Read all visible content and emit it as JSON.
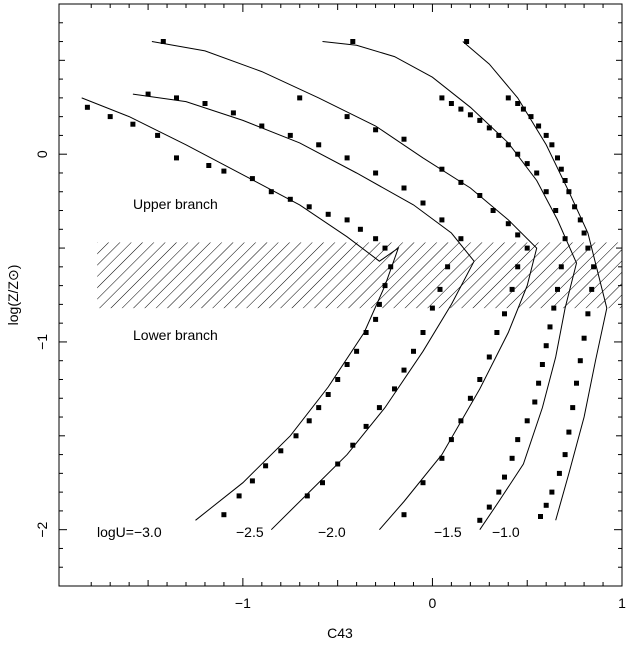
{
  "chart_data": {
    "type": "scatter",
    "xlabel": "C43",
    "ylabel": "log(Z/Z⊙)",
    "xlim": [
      -1.97,
      1.0
    ],
    "ylim": [
      -2.3,
      0.8
    ],
    "x_ticks": [
      -1,
      0,
      1
    ],
    "x_tick_labels": [
      "−1",
      "0",
      "1"
    ],
    "y_ticks": [
      -2,
      -1,
      0
    ],
    "y_tick_labels": [
      "−2",
      "−1",
      "0"
    ],
    "grid": false,
    "legend": "none",
    "annotations": {
      "upper_branch": "Upper branch",
      "lower_branch": "Lower branch",
      "u_label_1": "logU=−3.0",
      "u_label_2": "−2.5",
      "u_label_3": "−2.0",
      "u_label_4": "−1.5",
      "u_label_5": "−1.0"
    },
    "shaded_band": {
      "y_range": [
        -0.82,
        -0.47
      ],
      "x_range": [
        -1.8,
        1.0
      ],
      "style": "hatched"
    },
    "curves": [
      {
        "points": [
          [
            -1.85,
            0.3
          ],
          [
            -1.6,
            0.2
          ],
          [
            -1.3,
            0.05
          ],
          [
            -1.0,
            -0.11
          ],
          [
            -0.7,
            -0.27
          ],
          [
            -0.45,
            -0.44
          ],
          [
            -0.28,
            -0.57
          ],
          [
            -0.18,
            -0.5
          ],
          [
            -0.25,
            -0.7
          ],
          [
            -0.36,
            -0.95
          ],
          [
            -0.55,
            -1.24
          ],
          [
            -0.75,
            -1.5
          ],
          [
            -1.0,
            -1.75
          ],
          [
            -1.25,
            -1.95
          ]
        ]
      },
      {
        "points": [
          [
            -1.58,
            0.32
          ],
          [
            -1.3,
            0.28
          ],
          [
            -1.0,
            0.18
          ],
          [
            -0.7,
            0.06
          ],
          [
            -0.4,
            -0.1
          ],
          [
            -0.1,
            -0.27
          ],
          [
            0.1,
            -0.42
          ],
          [
            0.22,
            -0.57
          ],
          [
            0.1,
            -0.8
          ],
          [
            -0.05,
            -1.05
          ],
          [
            -0.25,
            -1.35
          ],
          [
            -0.45,
            -1.6
          ],
          [
            -0.65,
            -1.8
          ],
          [
            -0.85,
            -2.0
          ]
        ]
      },
      {
        "points": [
          [
            -1.48,
            0.6
          ],
          [
            -1.2,
            0.55
          ],
          [
            -0.9,
            0.44
          ],
          [
            -0.6,
            0.3
          ],
          [
            -0.3,
            0.15
          ],
          [
            -0.05,
            -0.02
          ],
          [
            0.2,
            -0.18
          ],
          [
            0.4,
            -0.35
          ],
          [
            0.55,
            -0.5
          ],
          [
            0.5,
            -0.7
          ],
          [
            0.4,
            -0.95
          ],
          [
            0.25,
            -1.25
          ],
          [
            0.05,
            -1.6
          ],
          [
            -0.15,
            -1.85
          ],
          [
            -0.28,
            -2.0
          ]
        ]
      },
      {
        "points": [
          [
            -0.58,
            0.6
          ],
          [
            -0.4,
            0.58
          ],
          [
            -0.2,
            0.52
          ],
          [
            0.0,
            0.41
          ],
          [
            0.2,
            0.25
          ],
          [
            0.4,
            0.06
          ],
          [
            0.55,
            -0.14
          ],
          [
            0.66,
            -0.35
          ],
          [
            0.76,
            -0.58
          ],
          [
            0.7,
            -0.82
          ],
          [
            0.65,
            -1.08
          ],
          [
            0.58,
            -1.35
          ],
          [
            0.48,
            -1.65
          ],
          [
            0.35,
            -1.85
          ],
          [
            0.25,
            -2.0
          ]
        ]
      },
      {
        "points": [
          [
            0.16,
            0.6
          ],
          [
            0.3,
            0.48
          ],
          [
            0.45,
            0.3
          ],
          [
            0.6,
            0.05
          ],
          [
            0.72,
            -0.2
          ],
          [
            0.82,
            -0.42
          ],
          [
            0.92,
            -0.82
          ],
          [
            0.86,
            -1.1
          ],
          [
            0.8,
            -1.4
          ],
          [
            0.72,
            -1.7
          ],
          [
            0.65,
            -1.95
          ]
        ]
      }
    ],
    "series": [
      {
        "x": [
          -1.82,
          -1.7,
          -1.58,
          -1.45,
          -1.35,
          -1.18,
          -1.1,
          -0.95,
          -0.85,
          -0.75,
          -0.65,
          -0.55,
          -0.45,
          -0.38,
          -0.3,
          -0.25
        ],
        "y": [
          0.25,
          0.2,
          0.16,
          0.1,
          -0.02,
          -0.06,
          -0.09,
          -0.13,
          -0.2,
          -0.24,
          -0.28,
          -0.32,
          -0.35,
          -0.4,
          -0.45,
          -0.5
        ]
      },
      {
        "x": [
          -1.5,
          -1.35,
          -1.2,
          -1.05,
          -0.9,
          -0.75,
          -0.6,
          -0.45,
          -0.3,
          -0.15,
          -0.05,
          0.05,
          0.15
        ],
        "y": [
          0.32,
          0.3,
          0.27,
          0.22,
          0.15,
          0.1,
          0.05,
          -0.02,
          -0.1,
          -0.18,
          -0.26,
          -0.35,
          -0.45
        ]
      },
      {
        "x": [
          -1.42,
          -0.7,
          -0.45,
          -0.3,
          -0.15,
          0.05,
          0.15,
          0.25,
          0.32,
          0.4,
          0.45,
          0.5
        ],
        "y": [
          0.6,
          0.3,
          0.2,
          0.13,
          0.08,
          -0.08,
          -0.15,
          -0.22,
          -0.3,
          -0.37,
          -0.43,
          -0.5
        ]
      },
      {
        "x": [
          -0.42,
          0.05,
          0.1,
          0.15,
          0.2,
          0.25,
          0.3,
          0.35,
          0.4,
          0.45,
          0.5,
          0.55,
          0.6,
          0.65,
          0.7
        ],
        "y": [
          0.6,
          0.3,
          0.27,
          0.24,
          0.21,
          0.18,
          0.14,
          0.1,
          0.05,
          0.0,
          -0.05,
          -0.1,
          -0.2,
          -0.3,
          -0.45
        ]
      },
      {
        "x": [
          0.18,
          0.4,
          0.45,
          0.48,
          0.52,
          0.56,
          0.6,
          0.63,
          0.66,
          0.68,
          0.7,
          0.72,
          0.75,
          0.78,
          0.8,
          0.82
        ],
        "y": [
          0.6,
          0.3,
          0.27,
          0.24,
          0.2,
          0.15,
          0.1,
          0.05,
          -0.02,
          -0.08,
          -0.14,
          -0.2,
          -0.28,
          -0.35,
          -0.42,
          -0.5
        ]
      },
      {
        "x": [
          -0.22,
          -0.25,
          -0.28,
          -0.3,
          -0.35,
          -0.4,
          -0.45,
          -0.5,
          -0.55,
          -0.6,
          -0.65,
          -0.72,
          -0.8,
          -0.88,
          -0.95,
          -1.02,
          -1.1
        ],
        "y": [
          -0.6,
          -0.7,
          -0.8,
          -0.88,
          -0.95,
          -1.05,
          -1.12,
          -1.2,
          -1.28,
          -1.35,
          -1.42,
          -1.5,
          -1.58,
          -1.66,
          -1.74,
          -1.82,
          -1.92
        ]
      },
      {
        "x": [
          0.08,
          0.04,
          0.0,
          -0.05,
          -0.1,
          -0.15,
          -0.2,
          -0.28,
          -0.35,
          -0.42,
          -0.5,
          -0.58,
          -0.66
        ],
        "y": [
          -0.6,
          -0.72,
          -0.82,
          -0.95,
          -1.05,
          -1.15,
          -1.25,
          -1.35,
          -1.45,
          -1.55,
          -1.65,
          -1.75,
          -1.82
        ]
      },
      {
        "x": [
          0.45,
          0.42,
          0.38,
          0.34,
          0.3,
          0.25,
          0.2,
          0.15,
          0.1,
          0.05,
          -0.05,
          -0.15
        ],
        "y": [
          -0.6,
          -0.72,
          -0.85,
          -0.95,
          -1.08,
          -1.2,
          -1.3,
          -1.42,
          -1.52,
          -1.62,
          -1.75,
          -1.92
        ]
      },
      {
        "x": [
          0.68,
          0.66,
          0.64,
          0.62,
          0.6,
          0.58,
          0.56,
          0.54,
          0.5,
          0.45,
          0.42,
          0.38,
          0.35,
          0.3,
          0.25
        ],
        "y": [
          -0.6,
          -0.72,
          -0.82,
          -0.92,
          -1.02,
          -1.12,
          -1.22,
          -1.32,
          -1.42,
          -1.52,
          -1.62,
          -1.72,
          -1.8,
          -1.88,
          -1.95
        ]
      },
      {
        "x": [
          0.85,
          0.84,
          0.82,
          0.8,
          0.78,
          0.76,
          0.74,
          0.72,
          0.7,
          0.67,
          0.63,
          0.6,
          0.57
        ],
        "y": [
          -0.6,
          -0.72,
          -0.85,
          -0.98,
          -1.1,
          -1.22,
          -1.35,
          -1.48,
          -1.6,
          -1.7,
          -1.8,
          -1.87,
          -1.93
        ]
      }
    ]
  }
}
